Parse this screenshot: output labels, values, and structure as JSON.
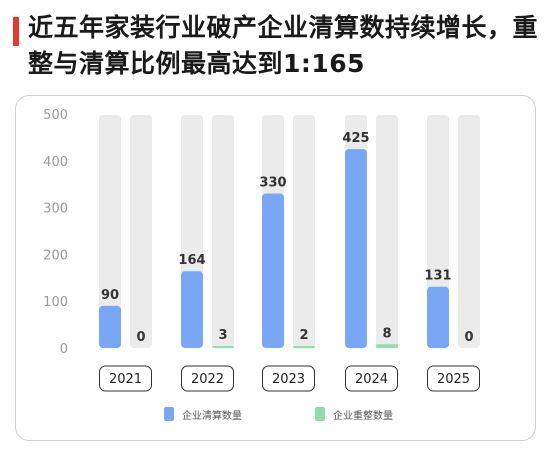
{
  "title": "近五年家装行业破产企业清算数持续增长，重整与清算比例最高达到1:165",
  "chart_data": {
    "type": "bar",
    "categories": [
      "2021",
      "2022",
      "2023",
      "2024",
      "2025"
    ],
    "series": [
      {
        "name": "企业清算数量",
        "values": [
          90,
          164,
          330,
          425,
          131
        ],
        "color": "#79a7f5"
      },
      {
        "name": "企业重整数量",
        "values": [
          0,
          3,
          2,
          8,
          0
        ],
        "color": "#8fdfae"
      }
    ],
    "ylim": [
      0,
      500
    ],
    "yticks": [
      0,
      100,
      200,
      300,
      400,
      500
    ],
    "track_color": "#ebebeb",
    "grid": false,
    "legend": "bottom"
  }
}
